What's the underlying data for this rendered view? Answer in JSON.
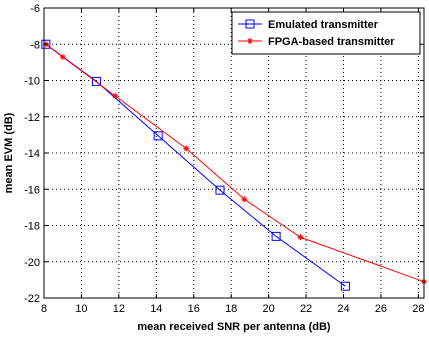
{
  "chart_data": {
    "type": "line",
    "xlabel": "mean received SNR per antenna (dB)",
    "ylabel": "mean EVM (dB)",
    "xlim": [
      8,
      28.3
    ],
    "ylim": [
      -22,
      -6
    ],
    "x_ticks": [
      8,
      10,
      12,
      14,
      16,
      18,
      20,
      22,
      24,
      26,
      28
    ],
    "y_ticks": [
      -6,
      -8,
      -10,
      -12,
      -14,
      -16,
      -18,
      -20,
      -22
    ],
    "grid": true,
    "legend_position": "top-right",
    "series": [
      {
        "name": "Emulated transmitter",
        "color": "#0000ff",
        "marker": "square",
        "x": [
          8.1,
          10.8,
          14.1,
          17.4,
          20.4,
          24.1
        ],
        "y": [
          -8.0,
          -10.05,
          -13.05,
          -16.05,
          -18.6,
          -21.35
        ]
      },
      {
        "name": "FPGA-based transmitter",
        "color": "#ff0000",
        "marker": "star",
        "x": [
          8.1,
          9.0,
          11.8,
          15.6,
          18.7,
          21.7,
          28.3
        ],
        "y": [
          -8.0,
          -8.7,
          -10.85,
          -13.75,
          -16.55,
          -18.65,
          -21.1
        ]
      }
    ]
  }
}
